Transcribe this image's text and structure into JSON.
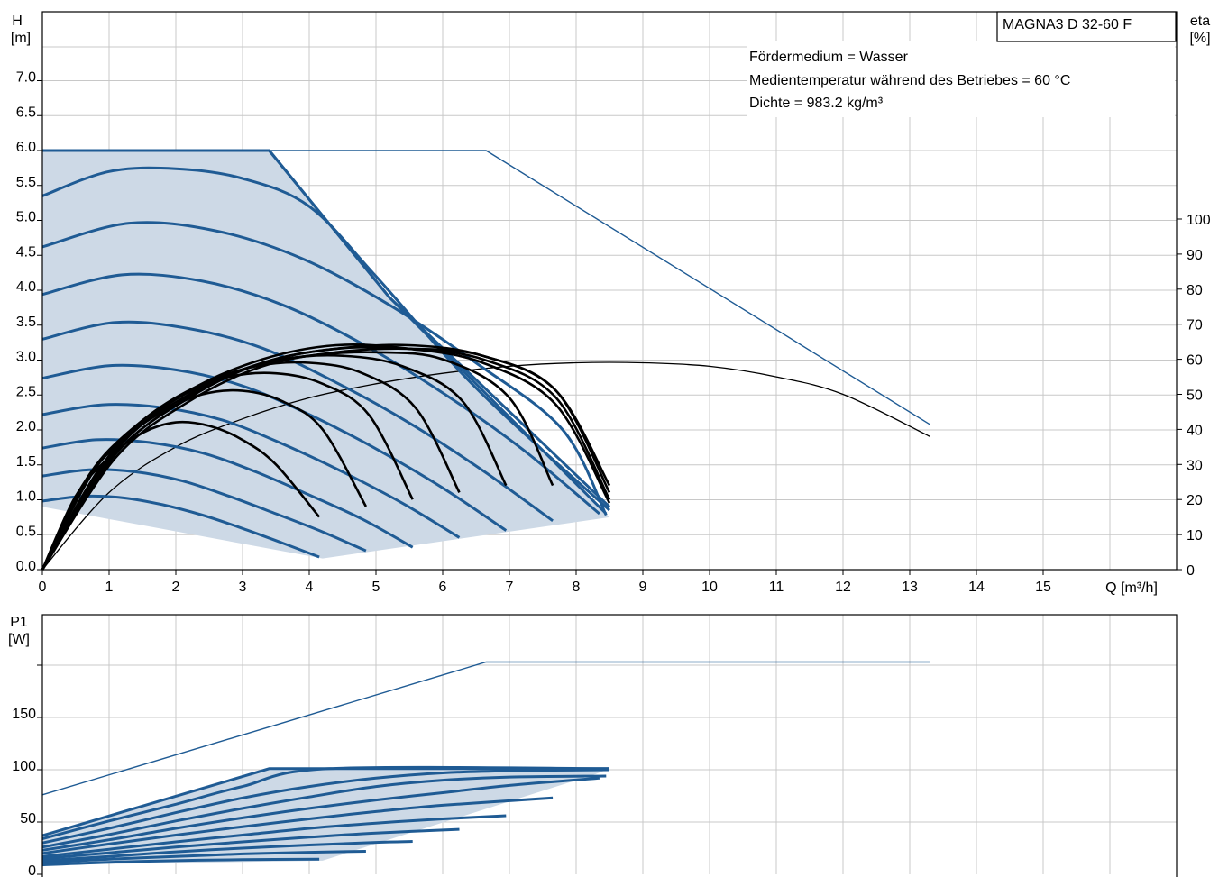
{
  "chart_data": [
    {
      "type": "line",
      "model_label": "MAGNA3 D 32-60 F",
      "info_lines": [
        "Fördermedium = Wasser",
        "Medientemperatur während des Betriebes = 60 °C",
        "Dichte = 983.2 kg/m³"
      ],
      "y_title": [
        "H",
        "[m]"
      ],
      "y2_title": [
        "eta",
        "[%]"
      ],
      "x_title": "Q [m³/h]",
      "xlim": [
        0,
        17
      ],
      "ylim": [
        0,
        8
      ],
      "y2lim": [
        0,
        100
      ],
      "x_ticks": [
        "0",
        "1",
        "2",
        "3",
        "4",
        "5",
        "6",
        "7",
        "8",
        "9",
        "10",
        "11",
        "12",
        "13",
        "14",
        "15"
      ],
      "y_ticks": [
        "0.0",
        "0.5",
        "1.0",
        "1.5",
        "2.0",
        "2.5",
        "3.0",
        "3.5",
        "4.0",
        "4.5",
        "5.0",
        "5.5",
        "6.0",
        "6.5",
        "7.0"
      ],
      "y2_ticks": [
        "0",
        "10",
        "20",
        "30",
        "40",
        "50",
        "60",
        "70",
        "80",
        "90",
        "100"
      ],
      "grid": true,
      "operating_area": [
        [
          0,
          6.0
        ],
        [
          3.4,
          6.0
        ],
        [
          5.2,
          3.9
        ],
        [
          8.5,
          0.75
        ],
        [
          4.2,
          0.16
        ],
        [
          0,
          0.9
        ]
      ],
      "head_series": [
        {
          "x": [
            0,
            0.6,
            1.2,
            1.8,
            2.4,
            3.0,
            3.6,
            4.15
          ],
          "y": [
            0.98,
            1.05,
            1.03,
            0.93,
            0.78,
            0.59,
            0.38,
            0.18
          ]
        },
        {
          "x": [
            0,
            0.7,
            1.4,
            2.1,
            2.8,
            3.5,
            4.2,
            4.85
          ],
          "y": [
            1.34,
            1.43,
            1.4,
            1.27,
            1.05,
            0.8,
            0.54,
            0.27
          ]
        },
        {
          "x": [
            0,
            0.8,
            1.6,
            2.4,
            3.2,
            4.0,
            4.8,
            5.55
          ],
          "y": [
            1.74,
            1.86,
            1.82,
            1.67,
            1.4,
            1.07,
            0.72,
            0.32
          ]
        },
        {
          "x": [
            0,
            0.9,
            1.8,
            2.7,
            3.6,
            4.5,
            5.4,
            6.25
          ],
          "y": [
            2.22,
            2.36,
            2.32,
            2.14,
            1.8,
            1.4,
            0.95,
            0.46
          ]
        },
        {
          "x": [
            0,
            1.0,
            2.0,
            3.0,
            4.0,
            5.0,
            6.0,
            6.95
          ],
          "y": [
            2.74,
            2.92,
            2.86,
            2.63,
            2.22,
            1.73,
            1.17,
            0.56
          ]
        },
        {
          "x": [
            0,
            1.1,
            2.2,
            3.3,
            4.4,
            5.5,
            6.6,
            7.65
          ],
          "y": [
            3.3,
            3.54,
            3.45,
            3.17,
            2.68,
            2.1,
            1.42,
            0.7
          ]
        },
        {
          "x": [
            0,
            1.2,
            2.4,
            3.6,
            4.8,
            6.0,
            7.2,
            8.35
          ],
          "y": [
            3.94,
            4.22,
            4.13,
            3.79,
            3.23,
            2.53,
            1.72,
            0.8
          ]
        },
        {
          "x": [
            0,
            1.3,
            2.6,
            3.9,
            5.2,
            6.5,
            7.8,
            8.45
          ],
          "y": [
            4.62,
            4.96,
            4.85,
            4.45,
            3.79,
            2.96,
            2.0,
            0.78
          ]
        },
        {
          "x": [
            0,
            1.0,
            2.0,
            3.0,
            4.0,
            5.0,
            6.5,
            8.5
          ],
          "y": [
            5.35,
            5.7,
            5.74,
            5.6,
            5.2,
            4.2,
            2.6,
            0.85
          ]
        },
        {
          "x": [
            0,
            3.4,
            5.2,
            8.5
          ],
          "y": [
            6.0,
            6.0,
            3.9,
            0.9
          ]
        },
        {
          "x": [
            0,
            3.4,
            5.2,
            8.45
          ],
          "y": [
            6.0,
            6.0,
            3.9,
            0.8
          ]
        }
      ],
      "eta_series": [
        {
          "x": [
            0,
            0.5,
            1.0,
            1.5,
            2.0,
            2.5,
            3.0,
            3.5,
            4.15
          ],
          "y": [
            0,
            21,
            32,
            39,
            42,
            41,
            37,
            30,
            15
          ]
        },
        {
          "x": [
            0,
            0.6,
            1.2,
            1.8,
            2.4,
            3.0,
            3.6,
            4.2,
            4.85
          ],
          "y": [
            0,
            24,
            37,
            45,
            50,
            51,
            48,
            40,
            18
          ]
        },
        {
          "x": [
            0,
            0.7,
            1.4,
            2.1,
            2.8,
            3.5,
            4.2,
            4.9,
            5.55
          ],
          "y": [
            0,
            27,
            41,
            50,
            55,
            56,
            53,
            44,
            20
          ]
        },
        {
          "x": [
            0,
            0.8,
            1.6,
            2.4,
            3.2,
            4.0,
            4.8,
            5.6,
            6.25
          ],
          "y": [
            0,
            29,
            44,
            53,
            58,
            59,
            56,
            46,
            22
          ]
        },
        {
          "x": [
            0,
            0.9,
            1.8,
            2.7,
            3.6,
            4.5,
            5.4,
            6.3,
            6.95
          ],
          "y": [
            0,
            30,
            46,
            55,
            60,
            61,
            58,
            48,
            24
          ]
        },
        {
          "x": [
            0,
            1.0,
            2.0,
            3.0,
            4.0,
            5.0,
            6.0,
            7.0,
            7.65
          ],
          "y": [
            0,
            31,
            47,
            57,
            61,
            62,
            60,
            49,
            24
          ]
        },
        {
          "x": [
            0,
            1.1,
            2.2,
            3.3,
            4.4,
            5.5,
            6.6,
            7.7,
            8.5
          ],
          "y": [
            0,
            32,
            48,
            58,
            62,
            63,
            61,
            51,
            24
          ]
        },
        {
          "x": [
            0,
            1.1,
            2.2,
            3.3,
            4.4,
            5.5,
            6.6,
            7.7,
            8.5
          ],
          "y": [
            0,
            33,
            49,
            59,
            63,
            64,
            61,
            51,
            22
          ]
        },
        {
          "x": [
            0,
            1.1,
            2.2,
            3.3,
            4.4,
            5.5,
            6.6,
            7.7,
            8.5
          ],
          "y": [
            0,
            34,
            50,
            59,
            63,
            63,
            60,
            49,
            20
          ]
        },
        {
          "x": [
            0,
            1.1,
            2.2,
            3.3,
            4.4,
            5.5,
            6.6,
            7.7,
            8.5
          ],
          "y": [
            0,
            35,
            51,
            60,
            64,
            63,
            59,
            47,
            19
          ]
        }
      ],
      "max_head_line": {
        "x": [
          0,
          6.65,
          13.3
        ],
        "y": [
          6.0,
          6.0,
          2.08
        ]
      },
      "max_eta_line": {
        "x": [
          0,
          1,
          2,
          3,
          4,
          5,
          6,
          7,
          8,
          9,
          10,
          11,
          12,
          13.3
        ],
        "y": [
          0,
          22,
          35,
          43,
          49,
          53,
          56,
          58,
          59,
          59,
          58,
          55,
          50,
          38
        ]
      }
    },
    {
      "type": "line",
      "y_title": [
        "P1",
        "[W]"
      ],
      "xlim": [
        0,
        17
      ],
      "ylim": [
        0,
        200
      ],
      "y_ticks": [
        "0",
        "50",
        "100",
        "150"
      ],
      "grid": true,
      "operating_area": [
        [
          0,
          38
        ],
        [
          3.4,
          101
        ],
        [
          8.5,
          101
        ],
        [
          8.3,
          96
        ],
        [
          4.2,
          13
        ],
        [
          0,
          9
        ]
      ],
      "power_series": [
        {
          "x": [
            0,
            1,
            2,
            3,
            4.15
          ],
          "y": [
            9,
            11.5,
            13,
            14,
            14.5
          ]
        },
        {
          "x": [
            0,
            1,
            2,
            3,
            4,
            4.85
          ],
          "y": [
            11,
            14.5,
            17,
            19.5,
            21,
            22
          ]
        },
        {
          "x": [
            0,
            1,
            2,
            3,
            4,
            5,
            5.55
          ],
          "y": [
            13,
            17,
            21.5,
            25,
            28,
            30.5,
            31.5
          ]
        },
        {
          "x": [
            0,
            1,
            2,
            3,
            4,
            5,
            6.25
          ],
          "y": [
            15,
            20.5,
            26,
            31,
            35.5,
            39.5,
            43
          ]
        },
        {
          "x": [
            0,
            1,
            2,
            3,
            4,
            5,
            6,
            6.95
          ],
          "y": [
            17,
            24,
            31,
            37.5,
            44,
            49,
            53,
            56
          ]
        },
        {
          "x": [
            0,
            1,
            2,
            3,
            4,
            5,
            6,
            7.65
          ],
          "y": [
            20,
            29,
            37.5,
            45.5,
            53,
            60,
            66,
            73
          ]
        },
        {
          "x": [
            0,
            1,
            2,
            3,
            4,
            5,
            6,
            7,
            8.35
          ],
          "y": [
            23,
            33,
            44,
            54,
            63,
            71,
            78,
            85,
            92
          ]
        },
        {
          "x": [
            0,
            1,
            2,
            3,
            4,
            5,
            6,
            7,
            8.45
          ],
          "y": [
            26,
            38,
            51,
            63,
            74,
            84,
            90,
            93,
            94
          ]
        },
        {
          "x": [
            0,
            1,
            2,
            3,
            4,
            5,
            6,
            7,
            8.5
          ],
          "y": [
            30,
            44,
            59,
            73,
            84,
            92,
            97,
            99,
            100
          ]
        },
        {
          "x": [
            0,
            1,
            2,
            3,
            4.3,
            8.5
          ],
          "y": [
            34,
            51,
            67,
            84,
            101,
            101
          ]
        },
        {
          "x": [
            0,
            3.4,
            8.5
          ],
          "y": [
            37,
            101,
            101
          ]
        }
      ],
      "max_power_line": {
        "x": [
          0,
          6.65,
          13.3
        ],
        "y": [
          76,
          203,
          203
        ]
      }
    }
  ]
}
